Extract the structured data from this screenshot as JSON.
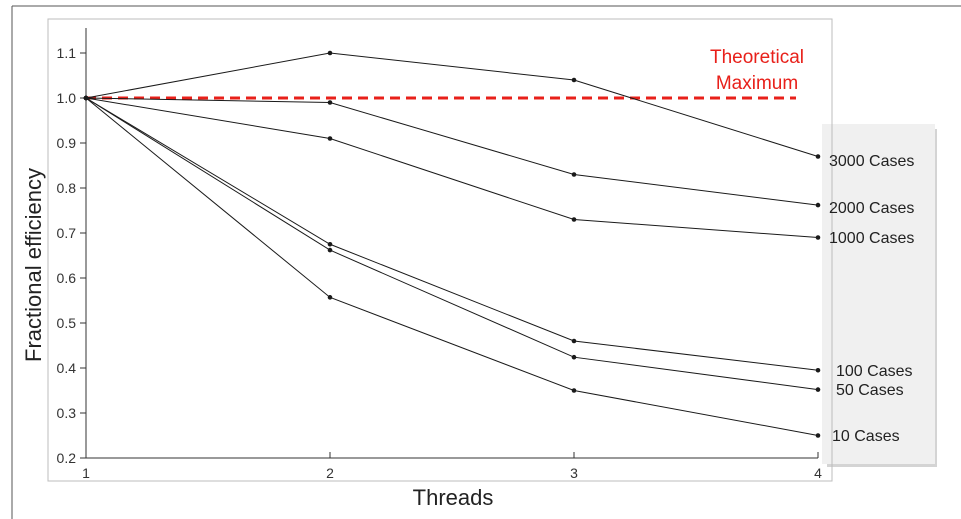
{
  "chart_data": {
    "type": "line",
    "title": "",
    "xlabel": "Threads",
    "ylabel": "Fractional efficiency",
    "x": [
      1,
      2,
      3,
      4
    ],
    "xticks": [
      "1",
      "2",
      "3",
      "4"
    ],
    "xlim": [
      1,
      4
    ],
    "ylim": [
      0.2,
      1.15
    ],
    "yticks": [
      "0.2",
      "0.3",
      "0.4",
      "0.5",
      "0.6",
      "0.7",
      "0.8",
      "0.9",
      "1.0",
      "1.1"
    ],
    "grid": false,
    "series": [
      {
        "name": "3000 Cases",
        "values": [
          1.0,
          1.1,
          1.04,
          0.87
        ]
      },
      {
        "name": "2000 Cases",
        "values": [
          1.0,
          0.99,
          0.83,
          0.762
        ]
      },
      {
        "name": "1000 Cases",
        "values": [
          1.0,
          0.91,
          0.73,
          0.69
        ]
      },
      {
        "name": "100 Cases",
        "values": [
          1.0,
          0.675,
          0.46,
          0.395
        ]
      },
      {
        "name": "50 Cases",
        "values": [
          1.0,
          0.662,
          0.424,
          0.352
        ]
      },
      {
        "name": "10 Cases",
        "values": [
          1.0,
          0.557,
          0.35,
          0.25
        ]
      }
    ],
    "reference_line": {
      "label_line1": "Theoretical",
      "label_line2": "Maximum",
      "value": 1.0,
      "color": "#e8201a"
    },
    "line_color": "#1a1a1a",
    "legend_panel_color": "#f0f0f0"
  }
}
